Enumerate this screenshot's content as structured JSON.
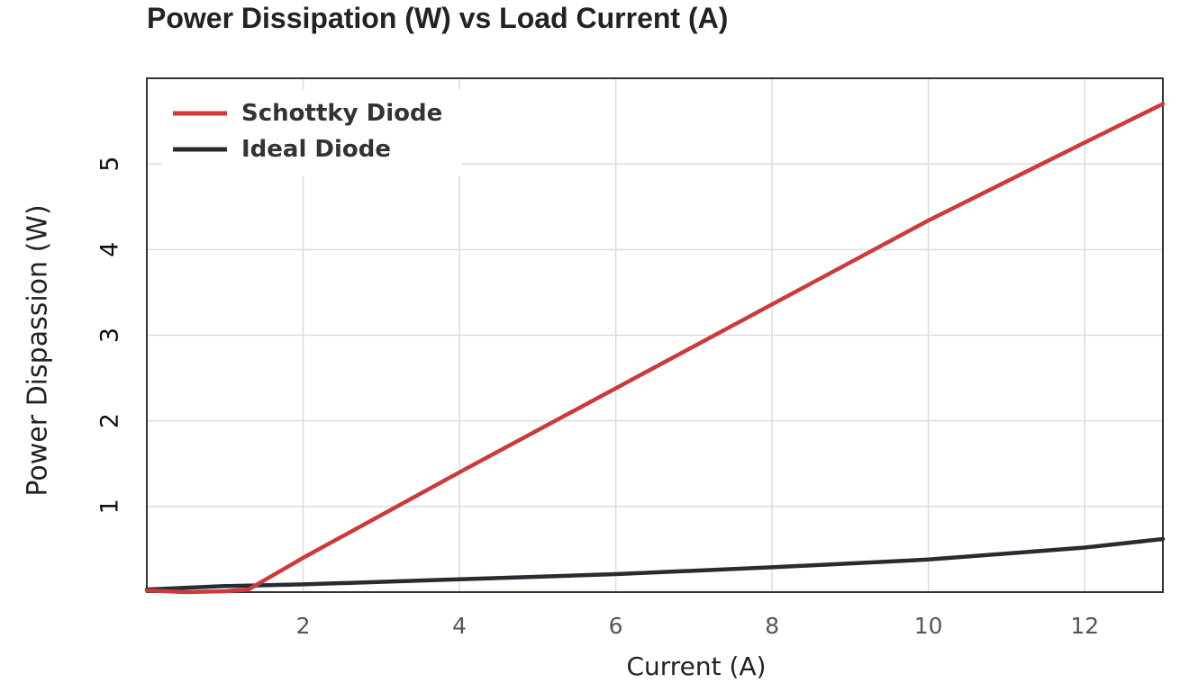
{
  "chart_data": {
    "type": "line",
    "title": "Power Dissipation (W) vs Load Current (A)",
    "xlabel": "Current (A)",
    "ylabel": "Power Dispassion (W)",
    "xlim": [
      0,
      13
    ],
    "ylim": [
      0,
      6
    ],
    "xticks": [
      2,
      4,
      6,
      8,
      10,
      12
    ],
    "yticks": [
      1,
      2,
      3,
      4,
      5
    ],
    "grid": true,
    "legend_position": "top-left",
    "series": [
      {
        "name": "Schottky Diode",
        "color": "#cc3b3b",
        "x": [
          0,
          0.5,
          1.0,
          1.3,
          2,
          4,
          6,
          8,
          10,
          12,
          13
        ],
        "y": [
          0.02,
          0.0,
          0.01,
          0.03,
          0.4,
          1.4,
          2.38,
          3.36,
          4.34,
          5.25,
          5.7
        ]
      },
      {
        "name": "Ideal Diode",
        "color": "#2a2a33",
        "x": [
          0,
          1,
          2,
          4,
          6,
          8,
          10,
          12,
          13
        ],
        "y": [
          0.03,
          0.07,
          0.09,
          0.15,
          0.21,
          0.29,
          0.38,
          0.52,
          0.62
        ]
      }
    ]
  }
}
